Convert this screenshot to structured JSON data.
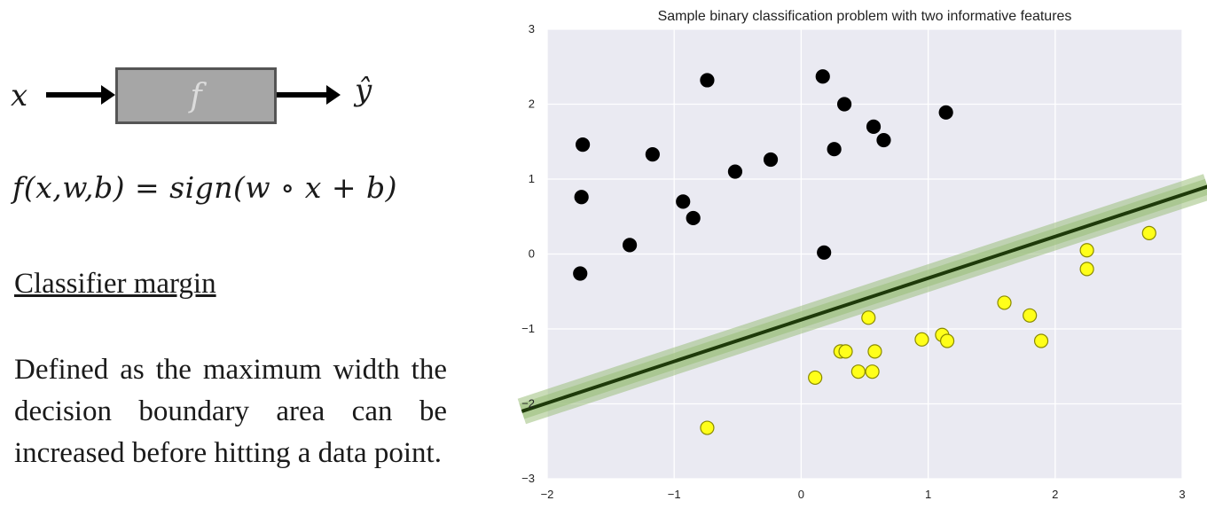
{
  "left": {
    "diagram": {
      "input": "x",
      "function": "f",
      "output": "ŷ"
    },
    "formula": "f(x,w,b) = sign(w ∘ x + b)",
    "heading": "Classifier margin",
    "description": "Defined as the maximum width the decision boundary area can be increased before hitting a data point."
  },
  "chart_data": {
    "type": "scatter",
    "title": "Sample binary classification problem with two informative features",
    "xlim": [
      -2,
      3
    ],
    "ylim": [
      -3,
      3
    ],
    "xticks": [
      "−2",
      "−1",
      "0",
      "1",
      "2",
      "3"
    ],
    "yticks": [
      "3",
      "2",
      "1",
      "0",
      "−1",
      "−2",
      "−3"
    ],
    "grid": true,
    "series": [
      {
        "color": "#000000",
        "points": [
          [
            -1.72,
            1.46
          ],
          [
            -1.73,
            0.76
          ],
          [
            -1.74,
            -0.26
          ],
          [
            -1.35,
            0.12
          ],
          [
            -1.17,
            1.33
          ],
          [
            -0.93,
            0.7
          ],
          [
            -0.85,
            0.48
          ],
          [
            -0.74,
            2.32
          ],
          [
            -0.52,
            1.1
          ],
          [
            -0.24,
            1.26
          ],
          [
            0.17,
            2.37
          ],
          [
            0.18,
            0.02
          ],
          [
            0.26,
            1.4
          ],
          [
            0.34,
            2.0
          ],
          [
            0.57,
            1.7
          ],
          [
            0.65,
            1.52
          ],
          [
            1.14,
            1.89
          ]
        ]
      },
      {
        "color": "#ffff1a",
        "points": [
          [
            -0.74,
            -2.32
          ],
          [
            0.11,
            -1.65
          ],
          [
            0.31,
            -1.3
          ],
          [
            0.35,
            -1.3
          ],
          [
            0.45,
            -1.57
          ],
          [
            0.53,
            -0.85
          ],
          [
            0.56,
            -1.57
          ],
          [
            0.58,
            -1.3
          ],
          [
            0.95,
            -1.14
          ],
          [
            1.11,
            -1.08
          ],
          [
            1.15,
            -1.16
          ],
          [
            1.6,
            -0.65
          ],
          [
            1.8,
            -0.82
          ],
          [
            1.89,
            -1.16
          ],
          [
            2.25,
            0.05
          ],
          [
            2.25,
            -0.2
          ],
          [
            2.74,
            0.28
          ]
        ]
      }
    ],
    "decision_boundary": {
      "x": [
        -2.2,
        3.2
      ],
      "y": [
        -2.1,
        0.9
      ],
      "color": "#1e3a0a"
    },
    "margin_band_color": "#9dc07e"
  }
}
